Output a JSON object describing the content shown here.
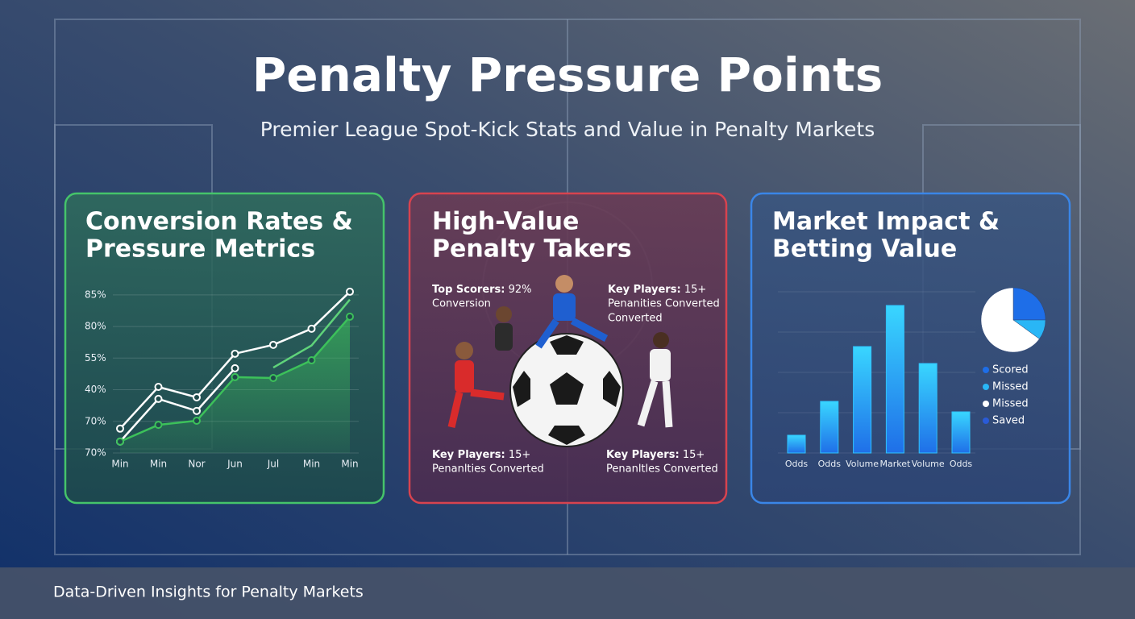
{
  "header": {
    "title": "Penalty Pressure Points",
    "subtitle": "Premier League Spot-Kick Stats and Value in Penalty Markets"
  },
  "panels": [
    {
      "title": [
        "Conversion Rates &",
        "Pressure Metrics"
      ]
    },
    {
      "title": [
        "High-Value",
        "Penalty Takers"
      ],
      "labels": [
        {
          "strong": "Top Scorers:",
          "text": [
            "92%",
            "Conversion"
          ]
        },
        {
          "strong": "Key Players:",
          "text": [
            "15+",
            "Penanities Converted",
            "Converted"
          ]
        },
        {
          "strong": "Key Players:",
          "text": [
            "15+",
            "Penanlties Converted"
          ]
        },
        {
          "strong": "Key Players:",
          "text": [
            "15+",
            "Penanltles Converted"
          ]
        }
      ]
    },
    {
      "title": [
        "Market Impact &",
        "Betting Value"
      ]
    }
  ],
  "footer": "Data-Driven Insights for Penalty Markets",
  "chart_data": [
    {
      "type": "line",
      "categories": [
        "Min",
        "Min",
        "Nor",
        "Jun",
        "Jul",
        "Min",
        "Min"
      ],
      "ylim": [
        0,
        5.2
      ],
      "yticks": [
        {
          "value": 0,
          "label": "70%"
        },
        {
          "value": 1,
          "label": "70%"
        },
        {
          "value": 2,
          "label": "40%"
        },
        {
          "value": 3,
          "label": "55%"
        },
        {
          "value": 4,
          "label": "80%"
        },
        {
          "value": 5,
          "label": "85%"
        }
      ],
      "grid": true,
      "series": [
        {
          "color": "#ffffff",
          "values": [
            0.77,
            2.09,
            1.76,
            3.14,
            3.42,
            3.93,
            5.1
          ]
        },
        {
          "color": "#ffffff",
          "values": [
            0.36,
            1.71,
            1.33,
            2.68,
            null,
            null,
            null
          ]
        },
        {
          "color": "#5fd37a",
          "values": [
            null,
            null,
            null,
            null,
            2.7,
            3.4,
            4.85
          ]
        },
        {
          "color": "#3cc15a",
          "values": [
            0.36,
            0.89,
            1.02,
            2.4,
            2.37,
            2.93,
            4.31
          ],
          "area": true
        }
      ]
    },
    {
      "type": "bar",
      "categories": [
        "Odds",
        "Odds",
        "Volume",
        "Market",
        "Volume",
        "Odds"
      ],
      "values": [
        22,
        64,
        132,
        183,
        111,
        51
      ],
      "ylim": [
        0,
        200
      ],
      "color": "#2fc4ff"
    },
    {
      "type": "pie",
      "categories": [
        "Scored",
        "Missed",
        "Missed",
        "Saved"
      ],
      "values": [
        25,
        10,
        65,
        0
      ],
      "colors": [
        "#1e6ee8",
        "#29b6f6",
        "#ffffff",
        "#2a5bd7"
      ]
    }
  ]
}
